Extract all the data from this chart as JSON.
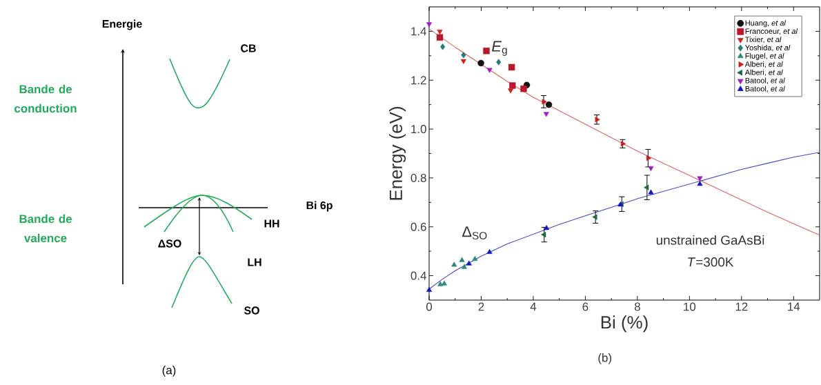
{
  "chart_data": [
    {
      "type": "other",
      "annotations": [
        "Energie",
        "CB",
        "Bande de conduction",
        "Bande de valence",
        "Bi 6p",
        "HH",
        "ΔSO",
        "LH",
        "SO",
        "(a)"
      ]
    },
    {
      "type": "scatter",
      "xlabel": "Bi (%)",
      "ylabel": "Energy (eV)",
      "xlim": [
        0,
        15
      ],
      "ylim": [
        0.3,
        1.5
      ],
      "xticks": [
        0,
        2,
        4,
        6,
        8,
        10,
        12,
        14
      ],
      "yticks": [
        0.4,
        0.6,
        0.8,
        {
          "value": 1.0,
          "label": "1.0"
        },
        1.2,
        1.4
      ],
      "legend": "top right",
      "grid": false,
      "annotations": [
        {
          "text": "*E*$_{g}$",
          "x": 2.3,
          "y": 1.33
        },
        "Δ$_{SO}$",
        "unstrained GaAsBi",
        "*T*=300K",
        "(b)"
      ],
      "series": [
        {
          "type": "line",
          "color": "#e06060",
          "marker": "none",
          "x": [
            0,
            1,
            2,
            3,
            4,
            5,
            6,
            7,
            8,
            9,
            10,
            11,
            12,
            13,
            14,
            15
          ],
          "values": [
            1.41,
            1.335,
            1.265,
            1.195,
            1.13,
            1.075,
            1.02,
            0.965,
            0.91,
            0.86,
            0.81,
            0.76,
            0.71,
            0.66,
            0.613,
            0.566
          ]
        },
        {
          "type": "line",
          "color": "#4848c8",
          "marker": "none",
          "x": [
            0,
            0.5,
            1,
            2,
            3,
            4,
            5,
            6,
            7,
            8,
            9,
            10,
            11,
            12,
            13,
            14,
            15
          ],
          "values": [
            0.345,
            0.385,
            0.42,
            0.48,
            0.53,
            0.57,
            0.61,
            0.645,
            0.68,
            0.715,
            0.745,
            0.775,
            0.805,
            0.835,
            0.86,
            0.885,
            0.905
          ]
        },
        {
          "name": "Huang, *et al*",
          "color": "#111111",
          "marker": "circle",
          "x": [
            1.99,
            3.75,
            4.6
          ],
          "values": [
            1.27,
            1.18,
            1.1
          ]
        },
        {
          "name": "Francoeur, *et al*",
          "color": "#b8182c",
          "marker": "square",
          "x": [
            0.41,
            2.2,
            3.17,
            3.2,
            3.63
          ],
          "values": [
            1.375,
            1.32,
            1.253,
            1.178,
            1.165
          ]
        },
        {
          "name": "Tixier, *et al*",
          "color": "#cc2222",
          "marker": "triangle-down",
          "x": [
            0.41,
            1.32,
            3.13
          ],
          "values": [
            1.4,
            1.279,
            1.159
          ]
        },
        {
          "name": "Yoshida, *et al*",
          "color": "#2a7a78",
          "marker": "diamond",
          "x": [
            0.52,
            1.32,
            2.67
          ],
          "values": [
            1.337,
            1.303,
            1.274
          ]
        },
        {
          "name": "Flugel, *et al*",
          "color": "#2e8a78",
          "marker": "triangle",
          "x": [
            0.43,
            0.58,
            0.96,
            1.26,
            1.35,
            1.76
          ],
          "values": [
            0.364,
            0.367,
            0.444,
            0.463,
            0.435,
            0.468
          ]
        },
        {
          "name": "Alberi, *et al*",
          "color": "#cc1e1e",
          "marker": "triangle-right",
          "x": [
            4.4,
            6.44,
            7.43,
            8.41
          ],
          "values": [
            1.112,
            1.039,
            0.94,
            0.881
          ],
          "errors": [
            0.025,
            0.019,
            0.017,
            0.036
          ]
        },
        {
          "name": "Alberi, *et al*",
          "color": "#1e6b3a",
          "marker": "triangle-left",
          "x": [
            4.42,
            6.39,
            7.4,
            8.37
          ],
          "values": [
            0.568,
            0.64,
            0.693,
            0.761
          ],
          "errors": [
            0.03,
            0.025,
            0.03,
            0.05
          ]
        },
        {
          "name": "Batool, *et al*",
          "color": "#a020c0",
          "marker": "triangle-down",
          "x": [
            0,
            2.32,
            4.5,
            8.52,
            10.4
          ],
          "values": [
            1.43,
            1.243,
            1.063,
            0.841,
            0.8
          ]
        },
        {
          "name": "Batool, *et al*",
          "color": "#1414c0",
          "marker": "triangle",
          "x": [
            0,
            1.53,
            2.32,
            4.51,
            7.35,
            8.52,
            10.4
          ],
          "values": [
            0.341,
            0.449,
            0.496,
            0.594,
            0.69,
            0.74,
            0.775
          ]
        }
      ]
    }
  ]
}
